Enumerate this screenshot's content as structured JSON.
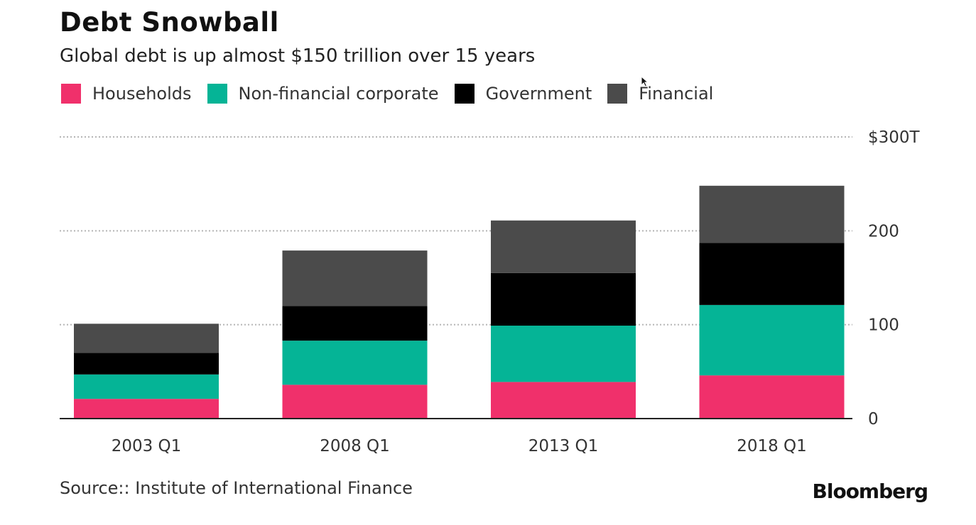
{
  "chart_data": {
    "type": "bar",
    "stacked": true,
    "title": "Debt Snowball",
    "subtitle": "Global debt is up almost $150 trillion over 15 years",
    "categories": [
      "2003 Q1",
      "2008 Q1",
      "2013 Q1",
      "2018 Q1"
    ],
    "series": [
      {
        "name": "Households",
        "color": "#f0306b",
        "values": [
          21,
          36,
          39,
          46
        ]
      },
      {
        "name": "Non-financial corporate",
        "color": "#05b496",
        "values": [
          26,
          47,
          60,
          75
        ]
      },
      {
        "name": "Government",
        "color": "#000000",
        "values": [
          23,
          37,
          56,
          66
        ]
      },
      {
        "name": "Financial",
        "color": "#4b4b4b",
        "values": [
          31,
          59,
          56,
          61
        ]
      }
    ],
    "ylim": [
      0,
      300
    ],
    "yticks": [
      {
        "value": 0,
        "label": "0"
      },
      {
        "value": 100,
        "label": "100"
      },
      {
        "value": 200,
        "label": "200"
      },
      {
        "value": 300,
        "label": "$300T"
      }
    ],
    "grid": true,
    "legend_position": "top-left",
    "source": "Source:: Institute of International Finance",
    "brand": "Bloomberg"
  }
}
